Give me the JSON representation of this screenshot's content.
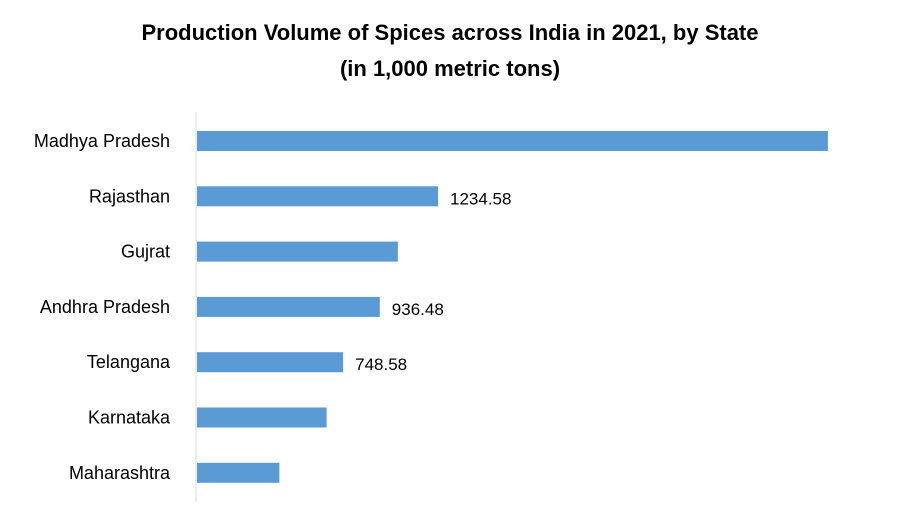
{
  "chart_data": {
    "type": "bar",
    "orientation": "horizontal",
    "title": "Production Volume of Spices across India in 2021, by State",
    "subtitle": "(in 1,000 metric tons)",
    "categories": [
      "Madhya Pradesh",
      "Rajasthan",
      "Gujrat",
      "Andhra Pradesh",
      "Telangana",
      "Karnataka",
      "Maharashtra"
    ],
    "values": [
      3232,
      1234.58,
      1029,
      936.48,
      748.58,
      664,
      422
    ],
    "data_labels": [
      "",
      "1234.58",
      "",
      "936.48",
      "748.58",
      "",
      ""
    ],
    "xlim": [
      0,
      3300
    ],
    "grid": false,
    "bar_color": "#5b9bd5",
    "axis_color": "#d9d9d9"
  }
}
